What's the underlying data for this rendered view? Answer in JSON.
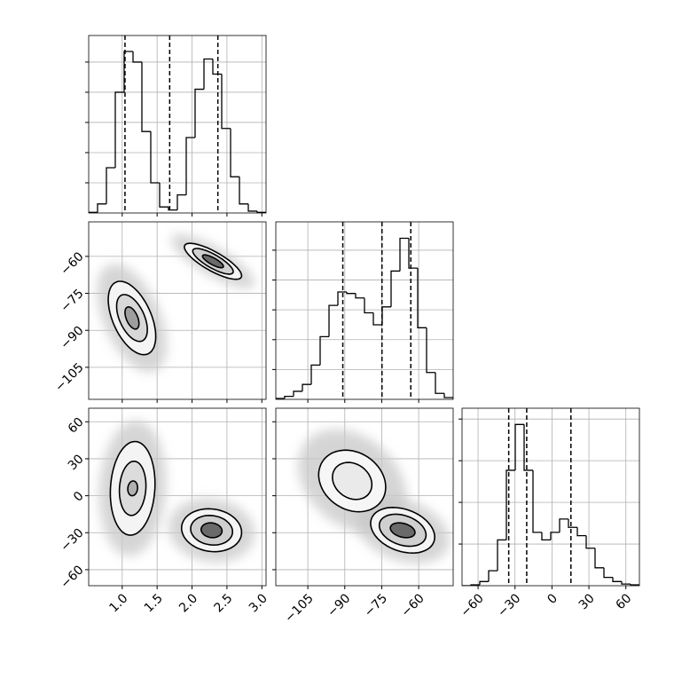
{
  "chart_data": [
    {
      "type": "histogram",
      "color": "#000000",
      "grid": true,
      "xlim": [
        0.52,
        3.06
      ],
      "xticks": [
        1,
        1.5,
        2,
        2.5,
        3
      ],
      "ylim": [
        0,
        5.88
      ],
      "yticks": [
        1,
        2,
        3,
        4,
        5
      ],
      "bins": [
        0.52,
        0.647,
        0.774,
        0.901,
        1.028,
        1.155,
        1.282,
        1.409,
        1.536,
        1.663,
        1.79,
        1.917,
        2.044,
        2.171,
        2.298,
        2.425,
        2.552,
        2.679,
        2.806,
        2.933,
        3.06
      ],
      "counts": [
        0.02,
        0.3,
        1.5,
        4.0,
        5.35,
        5.0,
        2.7,
        1.0,
        0.2,
        0.1,
        0.6,
        2.5,
        4.1,
        5.1,
        4.6,
        2.8,
        1.2,
        0.3,
        0.06,
        0.02
      ],
      "quantiles": [
        1.04,
        1.68,
        2.37
      ]
    },
    {
      "type": "contour",
      "grid": true,
      "xlim": [
        0.52,
        3.06
      ],
      "xticks": [
        1,
        1.5,
        2,
        2.5,
        3
      ],
      "ylim": [
        -118,
        -46
      ],
      "yticks": [
        {
          "value": -105,
          "label": "−105"
        },
        {
          "value": -90,
          "label": "−90"
        },
        {
          "value": -75,
          "label": "−75"
        },
        {
          "value": -60,
          "label": "−60"
        }
      ],
      "blobs": [
        {
          "cx": 1.14,
          "cy": -85,
          "cloud": {
            "sx": 0.5,
            "sy": 22,
            "rho": -0.5,
            "fill": "#c8c8c8"
          },
          "levels": [
            {
              "sx": 0.34,
              "sy": 14.9,
              "rho": -0.5,
              "fill": "#f4f4f4"
            },
            {
              "sx": 0.22,
              "sy": 9.5,
              "rho": -0.5,
              "fill": "#d8d8d8"
            },
            {
              "sx": 0.1,
              "sy": 4.5,
              "rho": -0.5,
              "fill": "#9e9e9e"
            }
          ]
        },
        {
          "cx": 2.3,
          "cy": -62,
          "cloud": {
            "sx": 0.6,
            "sy": 11,
            "rho": -0.8,
            "fill": "#c8c8c8"
          },
          "levels": [
            {
              "sx": 0.41,
              "sy": 7.3,
              "rho": -0.8,
              "fill": "#f4f4f4"
            },
            {
              "sx": 0.29,
              "sy": 5.2,
              "rho": -0.8,
              "fill": "#d0d0d0"
            },
            {
              "sx": 0.15,
              "sy": 2.6,
              "rho": -0.8,
              "fill": "#6a6a6a"
            }
          ]
        }
      ]
    },
    {
      "type": "histogram",
      "color": "#000000",
      "grid": true,
      "xlim": [
        -118,
        -46
      ],
      "xticks": [
        -105,
        -90,
        -75,
        -60
      ],
      "ylim": [
        0,
        5.95
      ],
      "yticks": [
        1,
        2,
        3,
        4,
        5
      ],
      "bins": [
        -118,
        -114.4,
        -110.8,
        -107.2,
        -103.6,
        -100,
        -96.4,
        -92.8,
        -89.2,
        -85.6,
        -82,
        -78.4,
        -74.8,
        -71.2,
        -67.6,
        -64,
        -60.4,
        -56.8,
        -53.2,
        -49.6,
        -46
      ],
      "counts": [
        0.03,
        0.1,
        0.27,
        0.5,
        1.15,
        2.1,
        3.15,
        3.6,
        3.55,
        3.4,
        2.9,
        2.5,
        3.1,
        4.3,
        5.4,
        4.4,
        2.4,
        0.9,
        0.2,
        0.06
      ],
      "quantiles": [
        -90.8,
        -74.9,
        -63.2
      ]
    },
    {
      "type": "contour",
      "grid": true,
      "xlim": [
        0.52,
        3.06
      ],
      "xticks": [
        {
          "value": 1,
          "label": "1.0"
        },
        {
          "value": 1.5,
          "label": "1.5"
        },
        {
          "value": 2,
          "label": "2.0"
        },
        {
          "value": 2.5,
          "label": "2.5"
        },
        {
          "value": 3,
          "label": "3.0"
        }
      ],
      "ylim": [
        -73,
        71
      ],
      "yticks": [
        {
          "value": -60,
          "label": "−60"
        },
        {
          "value": -30,
          "label": "−30"
        },
        0,
        30,
        60
      ],
      "blobs": [
        {
          "cx": 1.15,
          "cy": 6,
          "cloud": {
            "sx": 0.48,
            "sy": 55,
            "rho": 0.1,
            "fill": "#c8c8c8"
          },
          "levels": [
            {
              "sx": 0.32,
              "sy": 38,
              "rho": 0.1,
              "fill": "#f4f4f4"
            },
            {
              "sx": 0.19,
              "sy": 22,
              "rho": 0.1,
              "fill": "#dcdcdc"
            },
            {
              "sx": 0.07,
              "sy": 6,
              "rho": 0.1,
              "fill": "#b0b0b0"
            }
          ]
        },
        {
          "cx": 2.28,
          "cy": -28,
          "cloud": {
            "sx": 0.62,
            "sy": 26,
            "rho": -0.1,
            "fill": "#c8c8c8"
          },
          "levels": [
            {
              "sx": 0.43,
              "sy": 17.4,
              "rho": -0.1,
              "fill": "#f4f4f4"
            },
            {
              "sx": 0.3,
              "sy": 12,
              "rho": -0.1,
              "fill": "#cfcfcf"
            },
            {
              "sx": 0.15,
              "sy": 6,
              "rho": -0.1,
              "fill": "#6a6a6a"
            }
          ]
        }
      ]
    },
    {
      "type": "contour",
      "grid": true,
      "xlim": [
        -118,
        -46
      ],
      "xticks": [
        {
          "value": -105,
          "label": "−105"
        },
        {
          "value": -90,
          "label": "−90"
        },
        {
          "value": -75,
          "label": "−75"
        },
        {
          "value": -60,
          "label": "−60"
        }
      ],
      "ylim": [
        -73,
        71
      ],
      "yticks": [
        -60,
        -30,
        0,
        30,
        60
      ],
      "blobs": [
        {
          "cx": -87,
          "cy": 12,
          "cloud": {
            "sx": 22,
            "sy": 42,
            "rho": -0.3,
            "fill": "#c8c8c8"
          },
          "levels": [
            {
              "sx": 13.6,
              "sy": 25,
              "rho": -0.2,
              "fill": "#f6f6f6"
            },
            {
              "sx": 8,
              "sy": 15,
              "rho": -0.2,
              "fill": "#eaeaea"
            }
          ]
        },
        {
          "cx": -66.5,
          "cy": -28,
          "cloud": {
            "sx": 19,
            "sy": 27,
            "rho": -0.3,
            "fill": "#c8c8c8"
          },
          "levels": [
            {
              "sx": 13,
              "sy": 18.5,
              "rho": -0.3,
              "fill": "#f4f4f4"
            },
            {
              "sx": 9.5,
              "sy": 13,
              "rho": -0.3,
              "fill": "#d0d0d0"
            },
            {
              "sx": 5,
              "sy": 6,
              "rho": -0.3,
              "fill": "#6a6a6a"
            }
          ]
        }
      ]
    },
    {
      "type": "histogram",
      "color": "#000000",
      "grid": true,
      "xlim": [
        -73,
        71
      ],
      "xticks": [
        {
          "value": -60,
          "label": "−60"
        },
        {
          "value": -30,
          "label": "−30"
        },
        0,
        30,
        60
      ],
      "ylim": [
        0,
        4.26
      ],
      "yticks": [
        1,
        2,
        3,
        4
      ],
      "bins": [
        -73,
        -65.8,
        -58.6,
        -51.4,
        -44.2,
        -37,
        -29.8,
        -22.6,
        -15.4,
        -8.2,
        -1,
        6.2,
        13.4,
        20.6,
        27.8,
        35,
        42.2,
        49.4,
        56.6,
        63.8,
        71
      ],
      "counts": [
        0,
        0.02,
        0.1,
        0.36,
        1.1,
        2.77,
        3.87,
        2.77,
        1.28,
        1.1,
        1.28,
        1.6,
        1.4,
        1.2,
        0.9,
        0.43,
        0.2,
        0.1,
        0.04,
        0.02
      ],
      "quantiles": [
        -35.1,
        -20.5,
        15.4
      ]
    }
  ]
}
